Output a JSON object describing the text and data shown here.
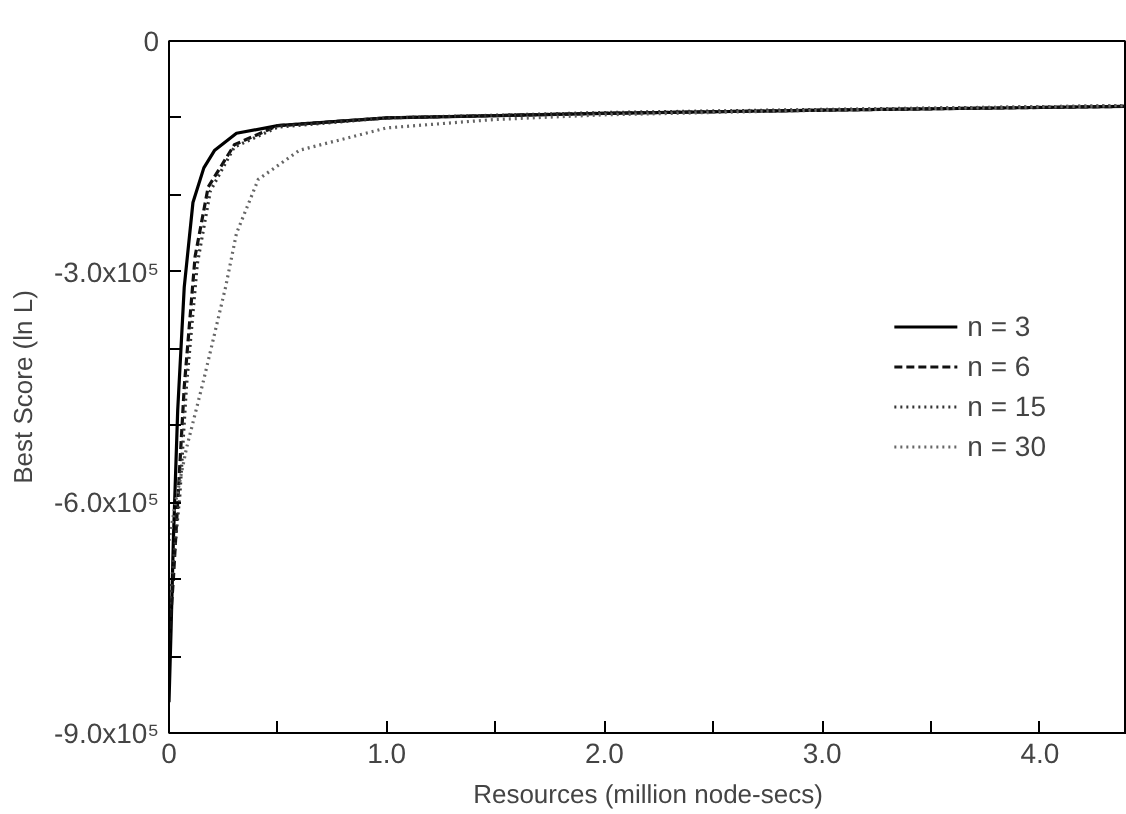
{
  "chart_data": {
    "type": "line",
    "xlabel": "Resources (million node-secs)",
    "ylabel": "Best Score (ln L)",
    "xlim": [
      0,
      4.4
    ],
    "ylim": [
      -900000,
      0
    ],
    "xticks": [
      0,
      {
        "value": 0.5,
        "label": null
      },
      {
        "value": 1,
        "label": "1.0"
      },
      {
        "value": 1.5,
        "label": null
      },
      {
        "value": 2,
        "label": "2.0"
      },
      {
        "value": 2.5,
        "label": null
      },
      {
        "value": 3,
        "label": "3.0"
      },
      {
        "value": 3.5,
        "label": null
      },
      {
        "value": 4,
        "label": "4.0"
      }
    ],
    "yticks": [
      0,
      {
        "value": -100000,
        "label": null
      },
      {
        "value": -200000,
        "label": null
      },
      {
        "value": -300000,
        "label": "-3.0x10⁵"
      },
      {
        "value": -400000,
        "label": null
      },
      {
        "value": -500000,
        "label": null
      },
      {
        "value": -600000,
        "label": "-6.0x10⁵"
      },
      {
        "value": -700000,
        "label": null
      },
      {
        "value": -800000,
        "label": null
      },
      {
        "value": -900000,
        "label": "-9.0x10⁵"
      }
    ],
    "grid": false,
    "legend": "right",
    "marker": "none",
    "series": [
      {
        "name": "n = 3",
        "color": "#000000",
        "line_style": "solid",
        "x": [
          0,
          0.01,
          0.02,
          0.04,
          0.07,
          0.11,
          0.16,
          0.21,
          0.31,
          0.5,
          1.0,
          2.0,
          3.0,
          4.4
        ],
        "values": [
          -860000,
          -760000,
          -650000,
          -480000,
          -320000,
          -210000,
          -165000,
          -142000,
          -120000,
          -110000,
          -100000,
          -94000,
          -90000,
          -85000
        ]
      },
      {
        "name": "n = 6",
        "color": "#111111",
        "line_style": "dashed",
        "x": [
          0,
          0.02,
          0.04,
          0.07,
          0.12,
          0.18,
          0.3,
          0.5,
          1.0,
          2.0,
          3.0,
          4.4
        ],
        "values": [
          -780000,
          -700000,
          -600000,
          -450000,
          -280000,
          -190000,
          -135000,
          -110000,
          -100000,
          -94000,
          -90000,
          -85000
        ]
      },
      {
        "name": "n = 15",
        "color": "#333333",
        "line_style": "dotted",
        "x": [
          0,
          0.02,
          0.05,
          0.08,
          0.13,
          0.19,
          0.3,
          0.5,
          1.0,
          2.0,
          3.0,
          4.4
        ],
        "values": [
          -740000,
          -680000,
          -590000,
          -450000,
          -290000,
          -195000,
          -138000,
          -112000,
          -100000,
          -93000,
          -89000,
          -84000
        ]
      },
      {
        "name": "n = 30",
        "color": "#666666",
        "line_style": "dotted",
        "x": [
          0,
          0.03,
          0.08,
          0.16,
          0.26,
          0.31,
          0.41,
          0.6,
          1.0,
          1.5,
          2.0,
          3.0,
          4.4
        ],
        "values": [
          -650000,
          -600000,
          -530000,
          -440000,
          -320000,
          -250000,
          -180000,
          -142000,
          -113000,
          -102000,
          -96000,
          -90000,
          -84000
        ]
      }
    ]
  }
}
